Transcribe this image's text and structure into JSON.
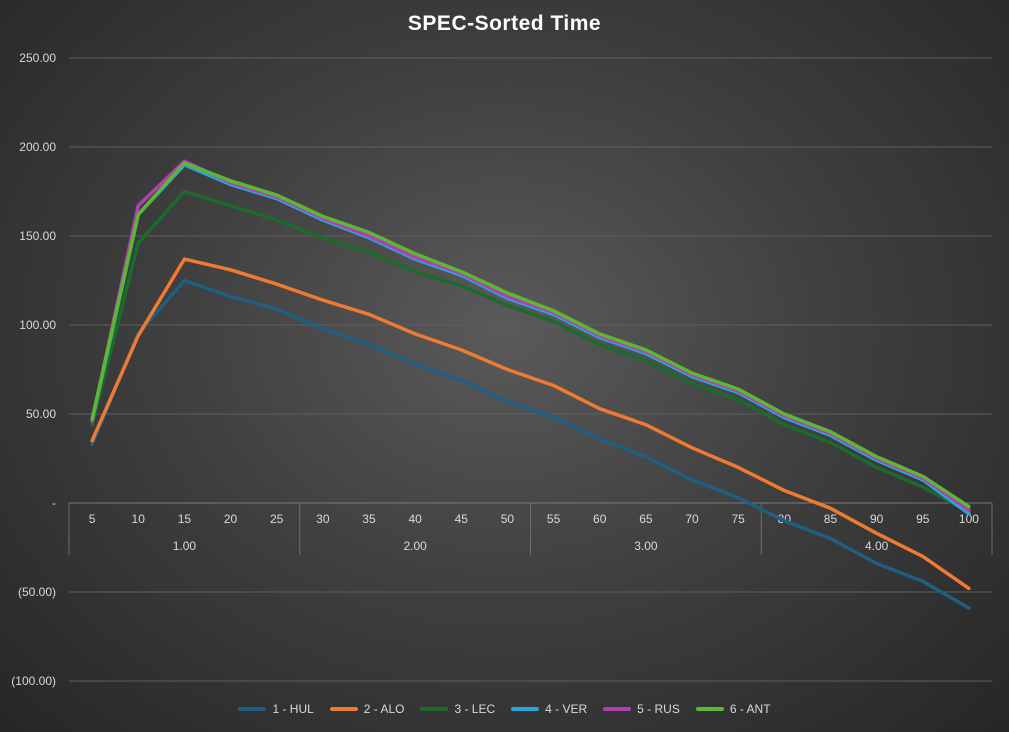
{
  "chart_data": {
    "type": "line",
    "title": "SPEC-Sorted Time",
    "xlabel": "",
    "ylabel": "",
    "categories": [
      "5",
      "10",
      "15",
      "20",
      "25",
      "30",
      "35",
      "40",
      "45",
      "50",
      "55",
      "60",
      "65",
      "70",
      "75",
      "80",
      "85",
      "90",
      "95",
      "100"
    ],
    "groups": [
      {
        "label": "1.00",
        "from": 0,
        "to": 4
      },
      {
        "label": "2.00",
        "from": 5,
        "to": 9
      },
      {
        "label": "3.00",
        "from": 10,
        "to": 14
      },
      {
        "label": "4.00",
        "from": 15,
        "to": 19
      }
    ],
    "y_ticks": [
      {
        "value": 250,
        "label": "250.00"
      },
      {
        "value": 200,
        "label": "200.00"
      },
      {
        "value": 150,
        "label": "150.00"
      },
      {
        "value": 100,
        "label": "100.00"
      },
      {
        "value": 50,
        "label": "50.00"
      },
      {
        "value": 0,
        "label": "-"
      },
      {
        "value": -50,
        "label": "(50.00)"
      },
      {
        "value": -100,
        "label": "(100.00)"
      }
    ],
    "ylim": [
      -100,
      250
    ],
    "grid": true,
    "legend_position": "bottom",
    "series": [
      {
        "name": "1 - HUL",
        "color": "#1f5f82",
        "values": [
          33,
          95,
          125,
          116,
          109,
          98,
          89,
          78,
          69,
          57,
          48,
          36,
          26,
          13,
          3,
          -10,
          -20,
          -34,
          -44,
          -59
        ]
      },
      {
        "name": "2 - ALO",
        "color": "#ef7b32",
        "values": [
          35,
          94,
          137,
          131,
          123,
          114,
          106,
          95,
          86,
          75,
          66,
          53,
          44,
          31,
          20,
          7,
          -3,
          -17,
          -30,
          -48
        ]
      },
      {
        "name": "3 - LEC",
        "color": "#1a6b2c",
        "values": [
          44,
          146,
          175,
          167,
          159,
          149,
          141,
          130,
          122,
          111,
          102,
          89,
          80,
          67,
          58,
          44,
          34,
          20,
          9,
          -5
        ]
      },
      {
        "name": "4 - VER",
        "color": "#29a5dc",
        "values": [
          46,
          162,
          190,
          179,
          171,
          159,
          149,
          137,
          128,
          115,
          106,
          93,
          84,
          71,
          62,
          48,
          38,
          24,
          13,
          -6
        ]
      },
      {
        "name": "5 - RUS",
        "color": "#b23fb0",
        "values": [
          46,
          167,
          192,
          180,
          172,
          160,
          150,
          138,
          129,
          116,
          107,
          94,
          85,
          72,
          63,
          49,
          39,
          25,
          14,
          -4
        ]
      },
      {
        "name": "6 - ANT",
        "color": "#5cb732",
        "values": [
          47,
          162,
          191,
          181,
          173,
          161,
          152,
          140,
          130,
          118,
          108,
          95,
          86,
          73,
          64,
          50,
          40,
          26,
          15,
          -2
        ]
      }
    ]
  }
}
